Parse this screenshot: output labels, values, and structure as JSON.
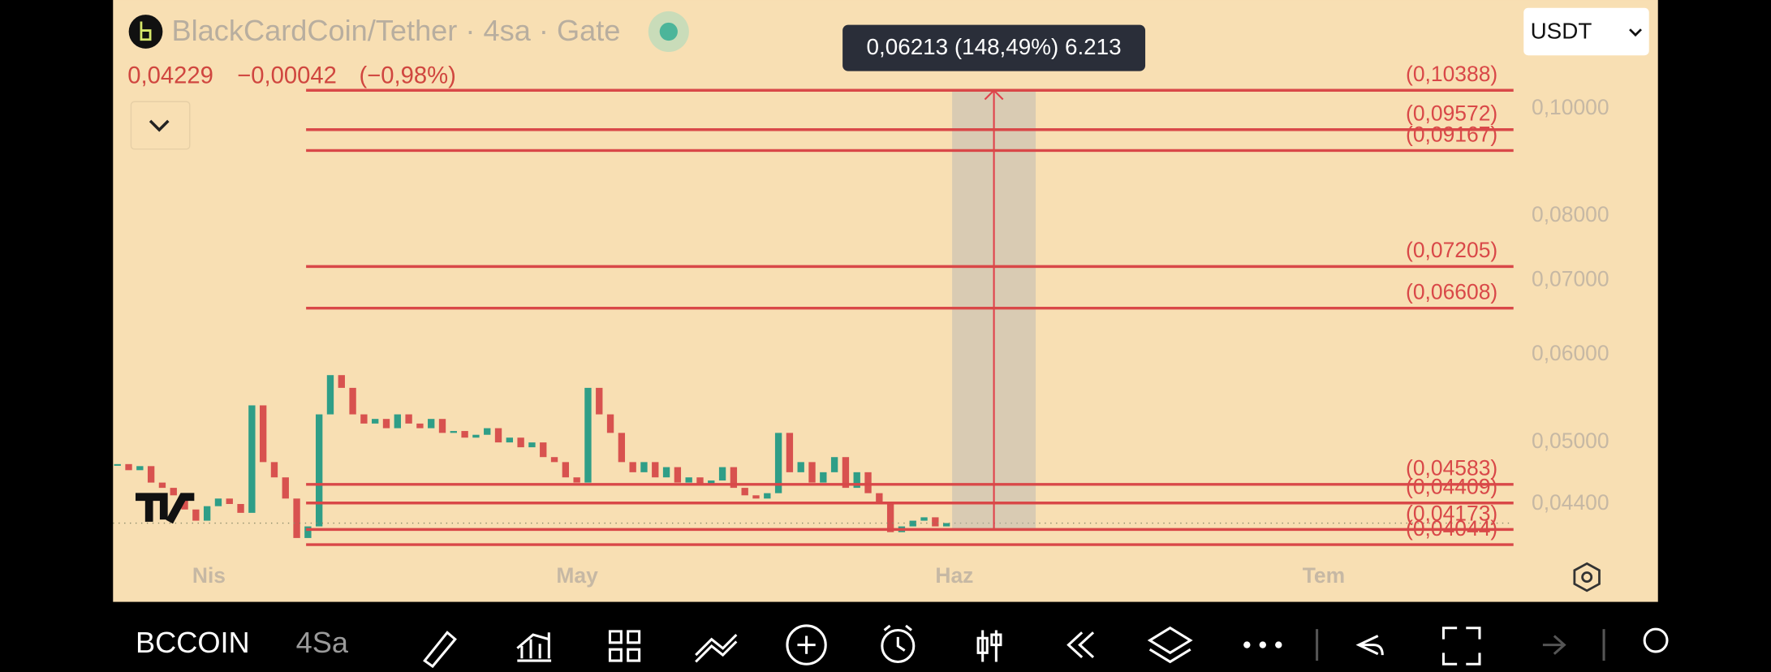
{
  "header": {
    "title": "BlackCardCoin/Tether · 4sa · Gate",
    "last_price": "0,04229",
    "change": "−0,00042",
    "change_pct": "(−0,98%)",
    "currency": "USDT"
  },
  "chart_data": {
    "type": "candlestick",
    "log_scale": true,
    "closes": [
      0.0478,
      0.0472,
      0.0476,
      0.046,
      0.0455,
      0.0448,
      0.0435,
      0.0425,
      0.0438,
      0.0445,
      0.044,
      0.0432,
      0.054,
      0.048,
      0.0465,
      0.0445,
      0.041,
      0.042,
      0.053,
      0.0575,
      0.056,
      0.053,
      0.052,
      0.0525,
      0.0515,
      0.053,
      0.052,
      0.0515,
      0.0525,
      0.051,
      0.0512,
      0.0505,
      0.0508,
      0.0515,
      0.05,
      0.0505,
      0.0495,
      0.05,
      0.0485,
      0.048,
      0.0465,
      0.046,
      0.056,
      0.053,
      0.051,
      0.048,
      0.047,
      0.048,
      0.0465,
      0.0475,
      0.046,
      0.0465,
      0.0458,
      0.0462,
      0.0475,
      0.0455,
      0.0448,
      0.0445,
      0.045,
      0.051,
      0.047,
      0.048,
      0.046,
      0.047,
      0.0485,
      0.0455,
      0.047,
      0.045,
      0.044,
      0.0415,
      0.042,
      0.0425,
      0.0428,
      0.042,
      0.04229
    ],
    "up_color": "#2f9e87",
    "down_color": "#d8524f",
    "level_color": "#d94848",
    "ylim": [
      0.0359,
      0.1253
    ],
    "yticks": [
      {
        "value": 0.1,
        "label": "0,10000"
      },
      {
        "value": 0.08,
        "label": "0,08000"
      },
      {
        "value": 0.07,
        "label": "0,07000"
      },
      {
        "value": 0.06,
        "label": "0,06000"
      },
      {
        "value": 0.05,
        "label": "0,05000"
      },
      {
        "value": 0.044,
        "label": "0,04400"
      }
    ],
    "levels": [
      {
        "value": 0.10388,
        "label": "(0,10388)"
      },
      {
        "value": 0.09572,
        "label": "(0,09572)"
      },
      {
        "value": 0.09167,
        "label": "(0,09167)"
      },
      {
        "value": 0.07205,
        "label": "(0,07205)"
      },
      {
        "value": 0.06608,
        "label": "(0,06608)"
      },
      {
        "value": 0.04583,
        "label": "(0,04583)"
      },
      {
        "value": 0.04409,
        "label": "(0,04409)"
      },
      {
        "value": 0.04173,
        "label": "(0,04173)"
      },
      {
        "value": 0.04044,
        "label": "(0,04044)"
      }
    ],
    "categories": [
      "Nis",
      "May",
      "Haz",
      "Tem"
    ],
    "tooltip": "0,06213 (148,49%) 6.213"
  },
  "toolbar": {
    "symbol": "BCCOIN",
    "interval": "4Sa"
  }
}
